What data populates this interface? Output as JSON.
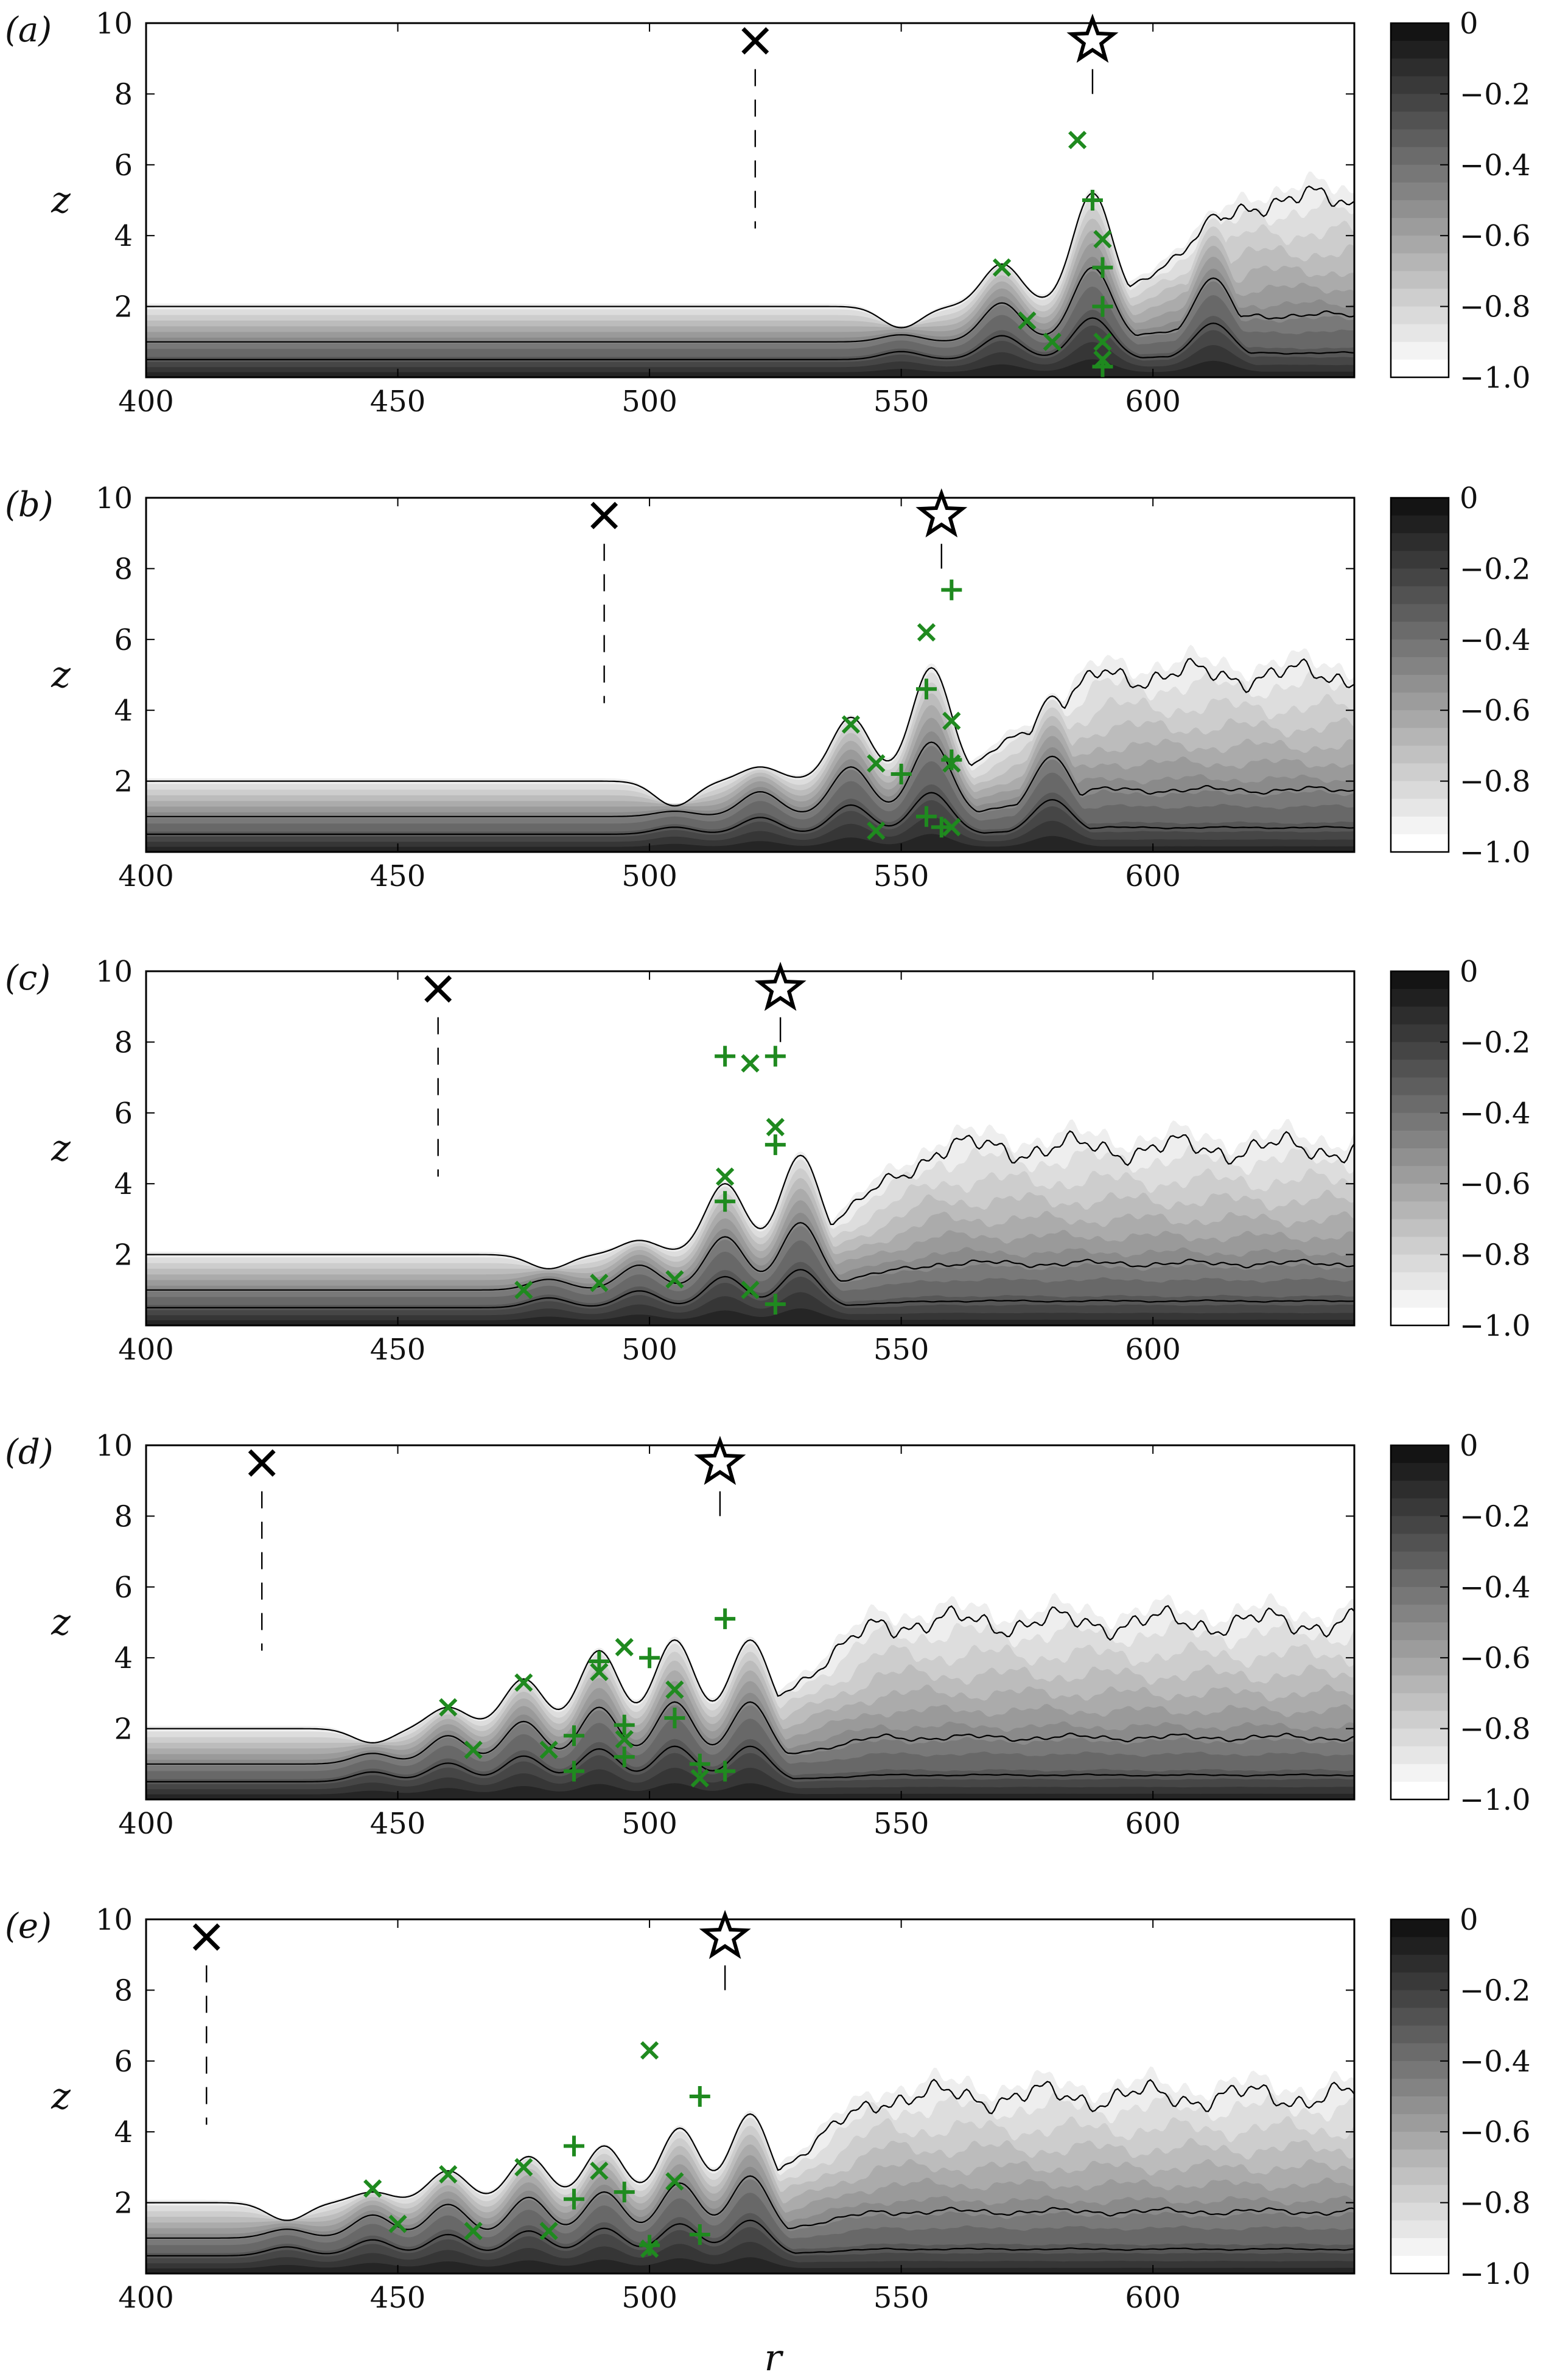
{
  "chart_data": {
    "type": "contour",
    "xlabel": "r",
    "ylabel": "z",
    "xlim": [
      400,
      640
    ],
    "ylim": [
      0,
      10
    ],
    "xticks": [
      400,
      450,
      500,
      550,
      600
    ],
    "yticks": [
      2,
      4,
      6,
      8,
      10
    ],
    "colorbar": {
      "ticks": [
        "0",
        "−0.2",
        "−0.4",
        "−0.6",
        "−0.8",
        "−1.0"
      ],
      "range": [
        -1.0,
        0
      ],
      "levels": 20,
      "colormap": "gray-to-black"
    },
    "marker_colors": {
      "green": "#1f8a1f",
      "black": "#000000"
    },
    "panels": [
      {
        "tag": "(a)",
        "black_x": [
          521,
          9.5
        ],
        "star": [
          588,
          9.5
        ],
        "front": 590,
        "bump_start": 555,
        "bumps": [
          [
            550,
            1.4
          ],
          [
            570,
            3.2
          ],
          [
            588,
            5.2
          ],
          [
            612,
            4.6
          ]
        ],
        "green_x": [
          [
            585,
            6.7
          ],
          [
            590,
            3.9
          ],
          [
            570,
            3.1
          ],
          [
            575,
            1.6
          ],
          [
            580,
            1.0
          ],
          [
            590,
            1.0
          ],
          [
            590,
            0.5
          ]
        ],
        "green_plus": [
          [
            588,
            5.0
          ],
          [
            590,
            3.1
          ],
          [
            590,
            2.0
          ],
          [
            590,
            0.3
          ]
        ]
      },
      {
        "tag": "(b)",
        "black_x": [
          491,
          9.5
        ],
        "star": [
          558,
          9.5
        ],
        "front": 560,
        "bump_start": 505,
        "bumps": [
          [
            505,
            1.3
          ],
          [
            522,
            2.4
          ],
          [
            540,
            3.8
          ],
          [
            556,
            5.2
          ],
          [
            580,
            4.4
          ]
        ],
        "green_x": [
          [
            555,
            6.2
          ],
          [
            560,
            3.7
          ],
          [
            540,
            3.6
          ],
          [
            545,
            2.5
          ],
          [
            560,
            2.5
          ],
          [
            545,
            0.6
          ],
          [
            560,
            0.7
          ]
        ],
        "green_plus": [
          [
            560,
            7.4
          ],
          [
            555,
            4.6
          ],
          [
            550,
            2.2
          ],
          [
            560,
            2.6
          ],
          [
            555,
            1.0
          ],
          [
            558,
            0.7
          ]
        ]
      },
      {
        "tag": "(c)",
        "black_x": [
          458,
          9.5
        ],
        "star": [
          526,
          9.5
        ],
        "front": 527,
        "bump_start": 470,
        "bumps": [
          [
            480,
            1.6
          ],
          [
            498,
            2.4
          ],
          [
            515,
            4.0
          ],
          [
            530,
            4.8
          ]
        ],
        "green_x": [
          [
            520,
            7.4
          ],
          [
            525,
            5.6
          ],
          [
            515,
            4.2
          ],
          [
            475,
            1.0
          ],
          [
            490,
            1.2
          ],
          [
            505,
            1.3
          ],
          [
            520,
            1.0
          ]
        ],
        "green_plus": [
          [
            515,
            7.6
          ],
          [
            525,
            7.6
          ],
          [
            525,
            5.1
          ],
          [
            515,
            3.5
          ],
          [
            525,
            0.6
          ]
        ]
      },
      {
        "tag": "(d)",
        "black_x": [
          423,
          9.5
        ],
        "star": [
          514,
          9.5
        ],
        "front": 516,
        "bump_start": 440,
        "bumps": [
          [
            445,
            1.6
          ],
          [
            460,
            2.6
          ],
          [
            475,
            3.4
          ],
          [
            490,
            4.2
          ],
          [
            505,
            4.5
          ],
          [
            520,
            4.5
          ]
        ],
        "green_x": [
          [
            495,
            4.3
          ],
          [
            505,
            3.1
          ],
          [
            475,
            3.3
          ],
          [
            490,
            3.6
          ],
          [
            460,
            2.6
          ],
          [
            465,
            1.4
          ],
          [
            480,
            1.4
          ],
          [
            495,
            1.7
          ],
          [
            510,
            0.6
          ]
        ],
        "green_plus": [
          [
            515,
            5.1
          ],
          [
            490,
            3.9
          ],
          [
            500,
            4.0
          ],
          [
            505,
            2.3
          ],
          [
            495,
            2.1
          ],
          [
            485,
            1.8
          ],
          [
            485,
            0.8
          ],
          [
            495,
            1.2
          ],
          [
            510,
            1.0
          ],
          [
            515,
            0.8
          ]
        ]
      },
      {
        "tag": "(e)",
        "black_x": [
          412,
          9.5
        ],
        "star": [
          515,
          9.5
        ],
        "front": 516,
        "bump_start": 420,
        "bumps": [
          [
            428,
            1.5
          ],
          [
            445,
            2.3
          ],
          [
            460,
            2.9
          ],
          [
            476,
            3.3
          ],
          [
            491,
            3.6
          ],
          [
            506,
            4.1
          ],
          [
            520,
            4.5
          ]
        ],
        "green_x": [
          [
            500,
            6.3
          ],
          [
            445,
            2.4
          ],
          [
            460,
            2.8
          ],
          [
            475,
            3.0
          ],
          [
            490,
            2.9
          ],
          [
            505,
            2.6
          ],
          [
            450,
            1.4
          ],
          [
            465,
            1.2
          ],
          [
            480,
            1.2
          ],
          [
            500,
            0.7
          ]
        ],
        "green_plus": [
          [
            510,
            5.0
          ],
          [
            485,
            3.6
          ],
          [
            485,
            2.1
          ],
          [
            495,
            2.3
          ],
          [
            500,
            0.8
          ],
          [
            510,
            1.1
          ]
        ]
      }
    ]
  }
}
